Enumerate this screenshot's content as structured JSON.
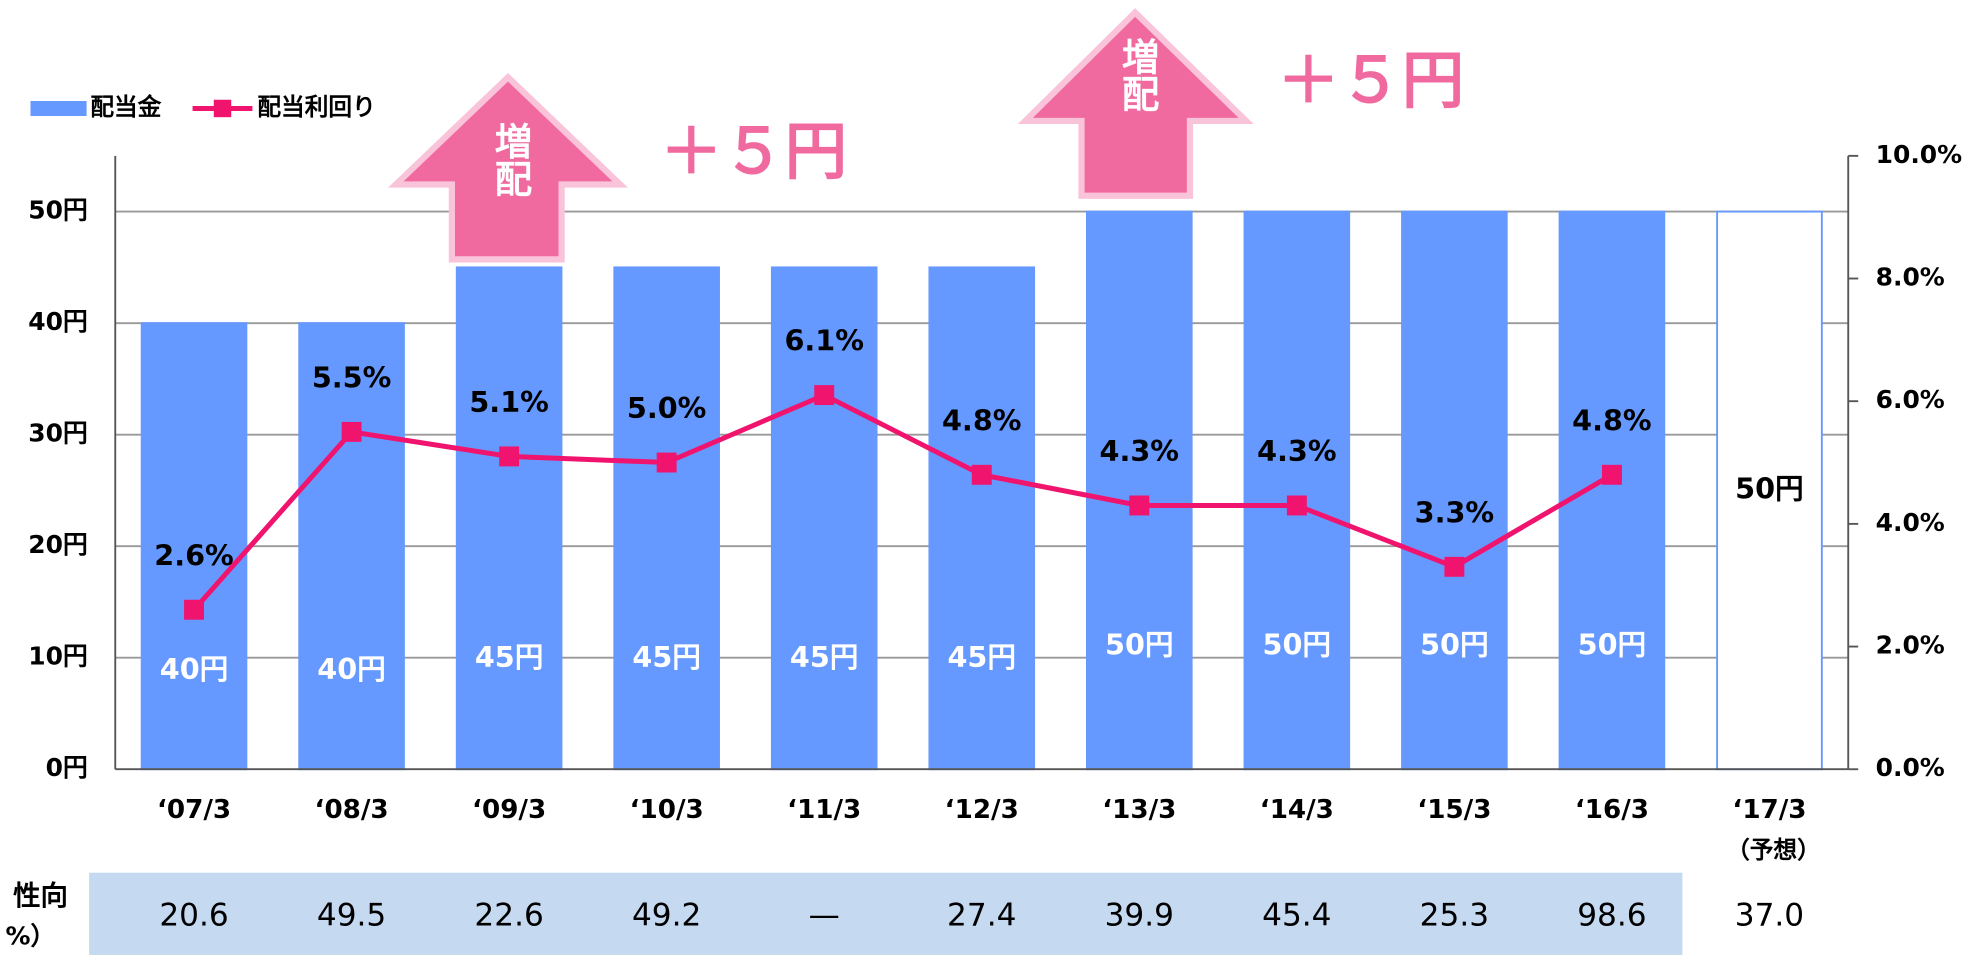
{
  "chart_data": {
    "type": "bar_line",
    "legend": [
      "配当金",
      "配当利回り"
    ],
    "categories": [
      "‘07/3",
      "‘08/3",
      "‘09/3",
      "‘10/3",
      "‘11/3",
      "‘12/3",
      "‘13/3",
      "‘14/3",
      "‘15/3",
      "‘16/3",
      "‘17/3"
    ],
    "category_note": "（予想）",
    "series": [
      {
        "name": "配当金",
        "type": "bar",
        "color": "#6699ff",
        "colors": [
          "#6699ff",
          "#6699ff",
          "#6699ff",
          "#6699ff",
          "#6699ff",
          "#6699ff",
          "#6699ff",
          "#6699ff",
          "#6699ff",
          "#6699ff",
          "#ffffff"
        ],
        "values": [
          40,
          40,
          45,
          45,
          45,
          45,
          50,
          50,
          50,
          50,
          50
        ],
        "value_labels": [
          "40円",
          "40円",
          "45円",
          "45円",
          "45円",
          "45円",
          "50円",
          "50円",
          "50円",
          "50円",
          "50円"
        ]
      },
      {
        "name": "配当利回り",
        "type": "line",
        "axis": "y2",
        "color": "#f0146e",
        "values": [
          2.6,
          5.5,
          5.1,
          5.0,
          6.1,
          4.8,
          4.3,
          4.3,
          3.3,
          4.8,
          null
        ],
        "value_labels": [
          "2.6%",
          "5.5%",
          "5.1%",
          "5.0%",
          "6.1%",
          "4.8%",
          "4.3%",
          "4.3%",
          "3.3%",
          "4.8%",
          null
        ]
      }
    ],
    "ylim": [
      0,
      55
    ],
    "yticks": [
      {
        "value": 0,
        "label": "0円"
      },
      {
        "value": 10,
        "label": "10円"
      },
      {
        "value": 20,
        "label": "20円"
      },
      {
        "value": 30,
        "label": "30円"
      },
      {
        "value": 40,
        "label": "40円"
      },
      {
        "value": 50,
        "label": "50円"
      }
    ],
    "y2lim": [
      0,
      10
    ],
    "y2ticks": [
      {
        "value": 0,
        "label": "0.0%"
      },
      {
        "value": 2,
        "label": "2.0%"
      },
      {
        "value": 4,
        "label": "4.0%"
      },
      {
        "value": 6,
        "label": "6.0%"
      },
      {
        "value": 8,
        "label": "8.0%"
      },
      {
        "value": 10,
        "label": "10.0%"
      }
    ],
    "grid": true,
    "annotations": [
      {
        "arrow": "増配",
        "text": "＋５円"
      },
      {
        "arrow": "増配",
        "text": "＋５円"
      }
    ],
    "payout_ratio": {
      "label": [
        "性向",
        "%）"
      ],
      "values": [
        20.6,
        49.5,
        22.6,
        49.2,
        null,
        27.4,
        39.9,
        45.4,
        25.3,
        98.6,
        37.0
      ],
      "value_labels": [
        "20.6",
        "49.5",
        "22.6",
        "49.2",
        "—",
        "27.4",
        "39.9",
        "45.4",
        "25.3",
        "98.6",
        "37.0"
      ]
    }
  }
}
